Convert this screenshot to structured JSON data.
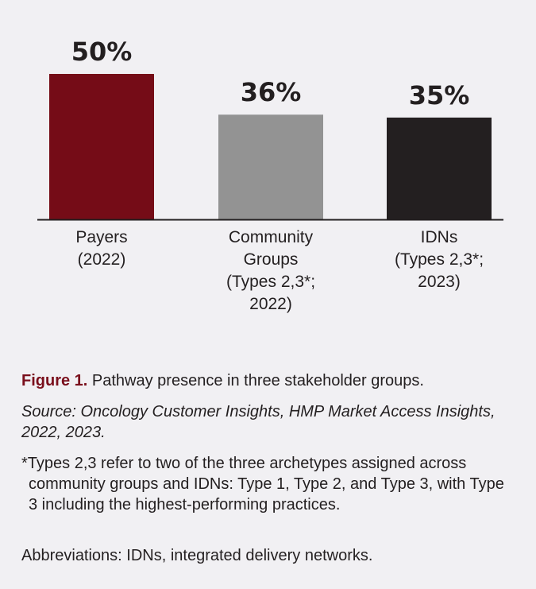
{
  "chart_data": {
    "type": "bar",
    "title": "",
    "xlabel": "",
    "ylabel": "",
    "ylim": [
      0,
      60
    ],
    "grid": false,
    "categories": [
      [
        "Payers",
        "(2022)"
      ],
      [
        "Community",
        "Groups",
        "(Types 2,3*;",
        "2022)"
      ],
      [
        "IDNs",
        "(Types 2,3*;",
        "2023)"
      ]
    ],
    "values": [
      50,
      36,
      35
    ],
    "value_labels": [
      "50%",
      "36%",
      "35%"
    ],
    "colors": [
      "#750c17",
      "#939393",
      "#231f20"
    ]
  },
  "caption": {
    "figure_number": "Figure 1.",
    "text": " Pathway presence in three stakeholder groups.",
    "source": "Source: Oncology Customer Insights, HMP Market Access Insights, 2022, 2023.",
    "footnote": "*Types 2,3 refer to two of the three archetypes assigned across community groups and IDNs: Type 1, Type 2, and Type 3, with Type 3 including the highest-performing practices.",
    "abbreviations": "Abbreviations: IDNs, integrated delivery networks."
  }
}
